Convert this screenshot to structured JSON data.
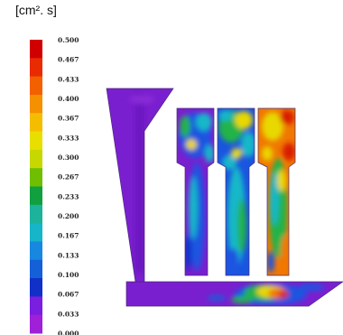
{
  "unit_label": "[cm². s]",
  "scale": {
    "ticks": [
      "0.500",
      "0.467",
      "0.433",
      "0.400",
      "0.367",
      "0.333",
      "0.300",
      "0.267",
      "0.233",
      "0.200",
      "0.167",
      "0.133",
      "0.100",
      "0.067",
      "0.033",
      "0.000"
    ],
    "colors": [
      "#d10000",
      "#ea2a00",
      "#f36000",
      "#f59000",
      "#f5bd00",
      "#e8df00",
      "#c7d800",
      "#6fbf00",
      "#10a040",
      "#1db39a",
      "#16b5c8",
      "#1688e0",
      "#1460d8",
      "#1030c8",
      "#7a1ee0",
      "#a020d8"
    ]
  },
  "colors": {
    "base": "#7a1fcf",
    "deep": "#6a14c0",
    "blue": "#1a55e0",
    "cyan": "#12b8c8",
    "green": "#22b34a",
    "yellow": "#e8d800",
    "orange": "#f07800",
    "red": "#d81a00"
  }
}
